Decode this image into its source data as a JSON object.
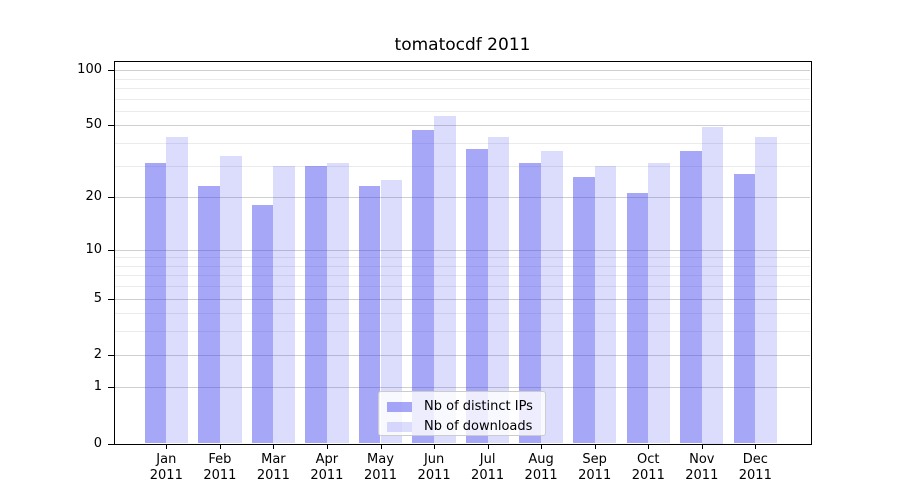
{
  "chart_data": {
    "type": "bar",
    "title": "tomatocdf 2011",
    "categories": [
      "Jan",
      "Feb",
      "Mar",
      "Apr",
      "May",
      "Jun",
      "Jul",
      "Aug",
      "Sep",
      "Oct",
      "Nov",
      "Dec"
    ],
    "category_year_label": "2011",
    "series": [
      {
        "name": "Nb of distinct IPs",
        "color": "rgba(68,68,238,0.47)",
        "values": [
          31,
          23,
          18,
          30,
          23,
          47,
          37,
          31,
          26,
          21,
          36,
          27
        ]
      },
      {
        "name": "Nb of downloads",
        "color": "rgba(68,68,238,0.19)",
        "values": [
          43,
          34,
          30,
          31,
          25,
          56,
          43,
          36,
          30,
          31,
          49,
          43
        ]
      }
    ],
    "xlabel": "",
    "ylabel": "",
    "yscale": "log1p",
    "ylim": [
      0,
      112
    ],
    "yticks": [
      0,
      1,
      2,
      5,
      10,
      20,
      50,
      100
    ],
    "yticks_minor": [
      3,
      4,
      6,
      7,
      8,
      9,
      30,
      40,
      60,
      70,
      80,
      90
    ],
    "grid": "on",
    "legend_position": "lower center"
  },
  "colors": {
    "major_grid": "#cfcfcf",
    "minor_grid": "#ebebeb",
    "spine": "#000000",
    "legend_border": "#cccccc"
  }
}
